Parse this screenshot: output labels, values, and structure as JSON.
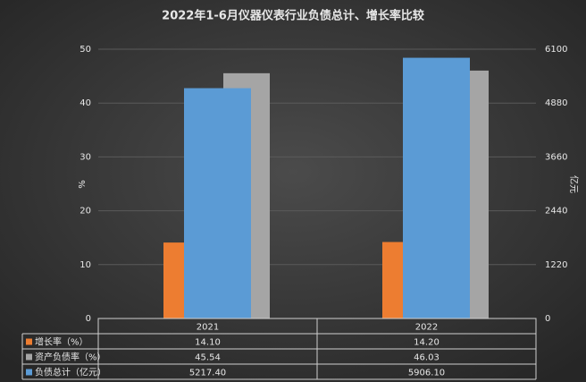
{
  "chart_data": {
    "type": "bar",
    "title": "2022年1-6月仪器仪表行业负债总计、增长率比较",
    "categories": [
      "2021",
      "2022"
    ],
    "y_label": "%",
    "y2_label": "亿元",
    "ylim": [
      0,
      50
    ],
    "yticks": [
      0,
      10,
      20,
      30,
      40,
      50
    ],
    "y2lim": [
      0,
      6100
    ],
    "y2ticks": [
      0,
      1220,
      2440,
      3660,
      4880,
      6100
    ],
    "grid": true,
    "series": [
      {
        "name": "增长率（%）",
        "color": "#ed7d31",
        "values": [
          14.1,
          14.2
        ],
        "value_labels": [
          "14.10",
          "14.20"
        ]
      },
      {
        "name": "资产负债率（%）",
        "color": "#a5a5a5",
        "values": [
          45.54,
          46.03
        ],
        "value_labels": [
          "45.54",
          "46.03"
        ]
      },
      {
        "name": "负债总计（亿元）",
        "color": "#5b9bd5",
        "values": [
          5217.4,
          5906.1
        ],
        "value_labels": [
          "5217.40",
          "5906.10"
        ],
        "axis": "y2"
      }
    ]
  }
}
